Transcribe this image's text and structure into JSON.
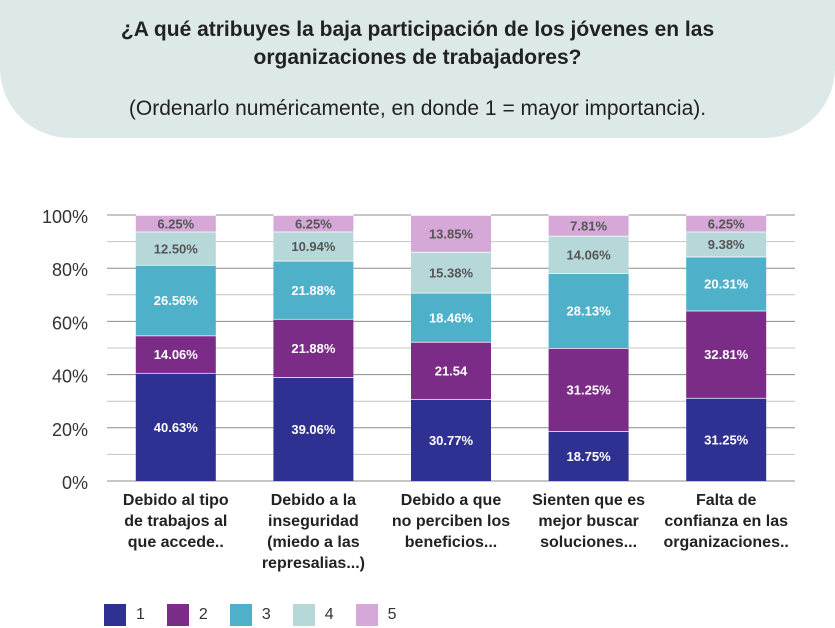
{
  "header": {
    "title": "¿A qué atribuyes la baja participación de los jóvenes en las organizaciones de trabajadores?",
    "subtitle": "(Ordenarlo numéricamente, en donde 1 = mayor importancia)."
  },
  "chart_data": {
    "type": "bar",
    "stacked": true,
    "categories": [
      [
        "Debido al tipo",
        "de trabajos al",
        "que accede.."
      ],
      [
        "Debido a la",
        "inseguridad",
        "(miedo a las",
        "represalias...)"
      ],
      [
        "Debido a que",
        "no perciben los",
        "beneficios..."
      ],
      [
        "Sienten que es",
        "mejor buscar",
        "soluciones..."
      ],
      [
        "Falta de",
        "confianza en las",
        "organizaciones.."
      ]
    ],
    "series": [
      {
        "name": "1",
        "color": "#2e3192",
        "values": [
          40.63,
          39.06,
          30.77,
          18.75,
          31.25
        ],
        "labels": [
          "40.63%",
          "39.06%",
          "30.77%",
          "18.75%",
          "31.25%"
        ]
      },
      {
        "name": "2",
        "color": "#7b2c86",
        "values": [
          14.06,
          21.88,
          21.54,
          31.25,
          32.81
        ],
        "labels": [
          "14.06%",
          "21.88%",
          "21.54",
          "31.25%",
          "32.81%"
        ]
      },
      {
        "name": "3",
        "color": "#4fb1c9",
        "values": [
          26.56,
          21.88,
          18.46,
          28.13,
          20.31
        ],
        "labels": [
          "26.56%",
          "21.88%",
          "18.46%",
          "28.13%",
          "20.31%"
        ]
      },
      {
        "name": "4",
        "color": "#b7d8d9",
        "values": [
          12.5,
          10.94,
          15.38,
          14.06,
          9.38
        ],
        "labels": [
          "12.50%",
          "10.94%",
          "15.38%",
          "14.06%",
          "9.38%"
        ]
      },
      {
        "name": "5",
        "color": "#d5a8d8",
        "values": [
          6.25,
          6.25,
          13.85,
          7.81,
          6.25
        ],
        "labels": [
          "6.25%",
          "6.25%",
          "13.85%",
          "7.81%",
          "6.25%"
        ]
      }
    ],
    "y_ticks": [
      "0%",
      "20%",
      "40%",
      "60%",
      "80%",
      "100%"
    ],
    "ylim": [
      0,
      100
    ],
    "grid": true,
    "legend_position": "bottom-left"
  }
}
